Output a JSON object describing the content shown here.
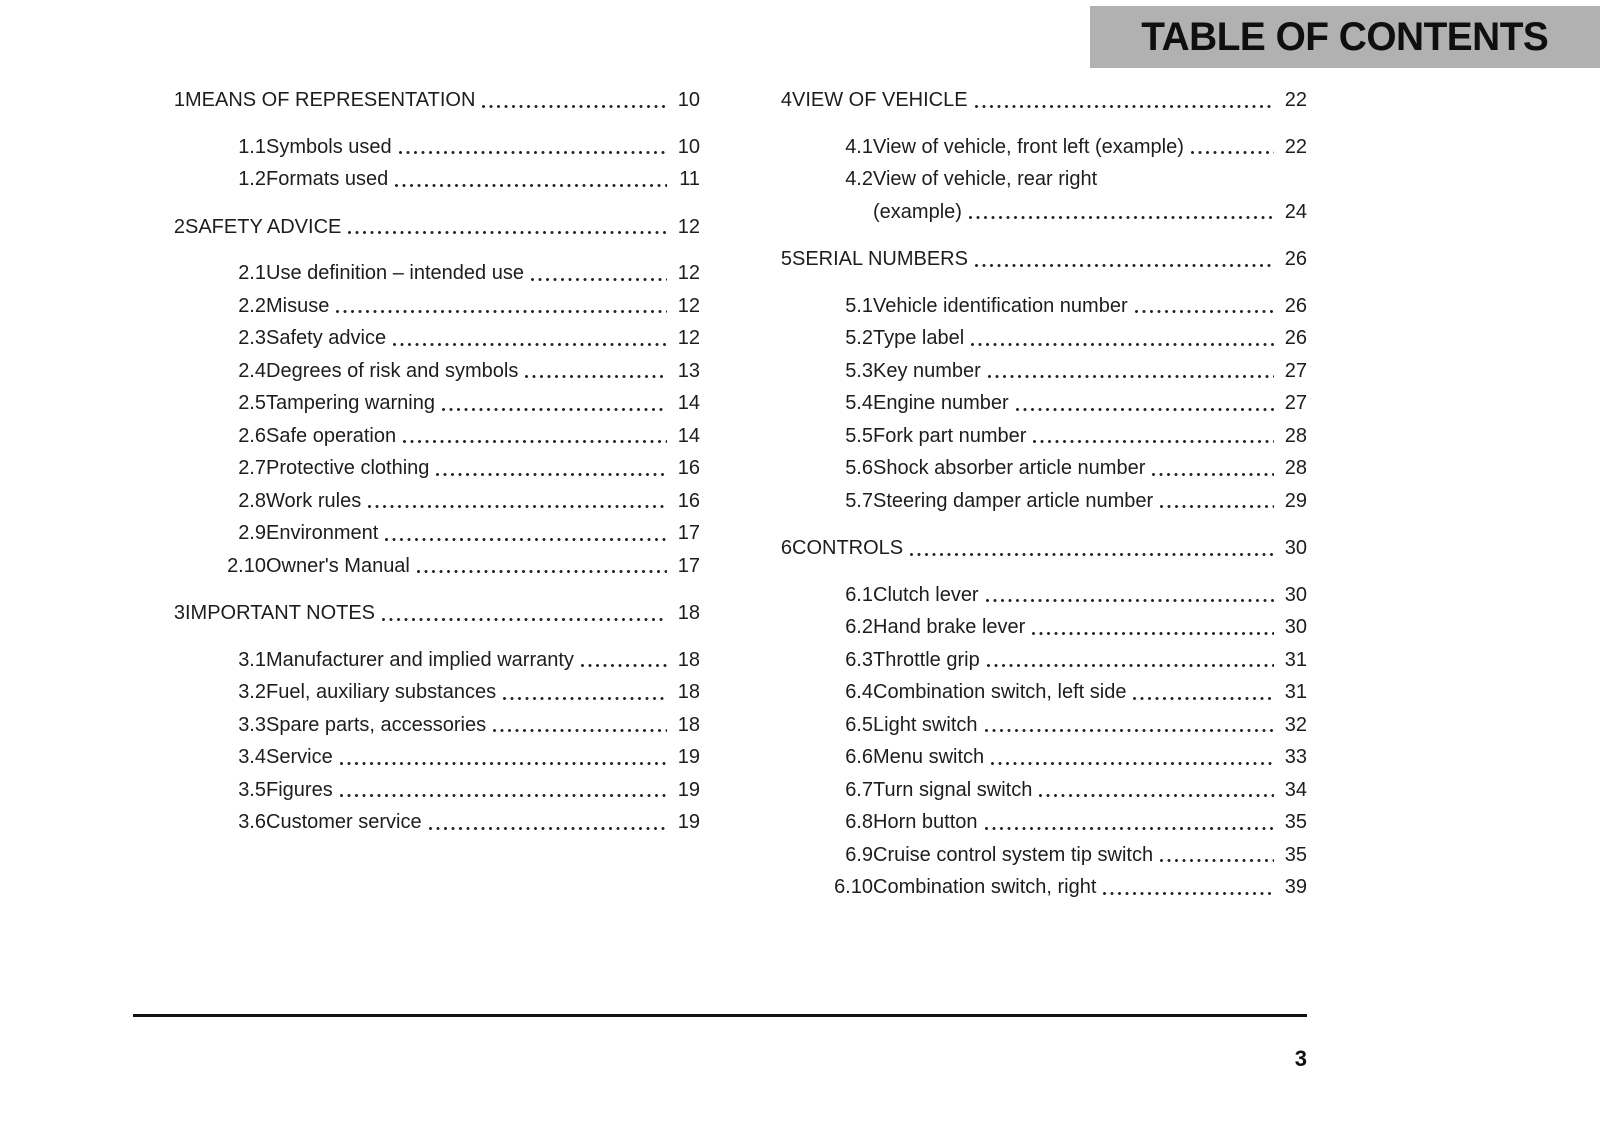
{
  "header": {
    "title": "TABLE OF CONTENTS",
    "banner_background": "#b1b1b1"
  },
  "footer": {
    "page_number": "3"
  },
  "toc": {
    "columns": [
      {
        "sections": [
          {
            "number": "1",
            "title": "MEANS OF REPRESENTATION",
            "page": "10",
            "entries": [
              {
                "number": "1.1",
                "title": "Symbols used",
                "page": "10"
              },
              {
                "number": "1.2",
                "title": "Formats used",
                "page": "11"
              }
            ]
          },
          {
            "number": "2",
            "title": "SAFETY ADVICE",
            "page": "12",
            "entries": [
              {
                "number": "2.1",
                "title": "Use definition – intended use",
                "page": "12"
              },
              {
                "number": "2.2",
                "title": "Misuse",
                "page": "12"
              },
              {
                "number": "2.3",
                "title": "Safety advice",
                "page": "12"
              },
              {
                "number": "2.4",
                "title": "Degrees of risk and symbols",
                "page": "13"
              },
              {
                "number": "2.5",
                "title": "Tampering warning",
                "page": "14"
              },
              {
                "number": "2.6",
                "title": "Safe operation",
                "page": "14"
              },
              {
                "number": "2.7",
                "title": "Protective clothing",
                "page": "16"
              },
              {
                "number": "2.8",
                "title": "Work rules",
                "page": "16"
              },
              {
                "number": "2.9",
                "title": "Environment",
                "page": "17"
              },
              {
                "number": "2.10",
                "title": "Owner's Manual",
                "page": "17"
              }
            ]
          },
          {
            "number": "3",
            "title": "IMPORTANT NOTES",
            "page": "18",
            "entries": [
              {
                "number": "3.1",
                "title": "Manufacturer and implied warranty",
                "page": "18"
              },
              {
                "number": "3.2",
                "title": "Fuel, auxiliary substances",
                "page": "18"
              },
              {
                "number": "3.3",
                "title": "Spare parts, accessories",
                "page": "18"
              },
              {
                "number": "3.4",
                "title": "Service",
                "page": "19"
              },
              {
                "number": "3.5",
                "title": "Figures",
                "page": "19"
              },
              {
                "number": "3.6",
                "title": "Customer service",
                "page": "19"
              }
            ]
          }
        ]
      },
      {
        "sections": [
          {
            "number": "4",
            "title": "VIEW OF VEHICLE",
            "page": "22",
            "entries": [
              {
                "number": "4.1",
                "title": "View of vehicle, front left (example)",
                "page": "22"
              },
              {
                "number": "4.2",
                "title": "View of vehicle, rear right",
                "title_line2": "(example)",
                "page": "24"
              }
            ]
          },
          {
            "number": "5",
            "title": "SERIAL NUMBERS",
            "page": "26",
            "entries": [
              {
                "number": "5.1",
                "title": "Vehicle identification number",
                "page": "26"
              },
              {
                "number": "5.2",
                "title": "Type label",
                "page": "26"
              },
              {
                "number": "5.3",
                "title": "Key number",
                "page": "27"
              },
              {
                "number": "5.4",
                "title": "Engine number",
                "page": "27"
              },
              {
                "number": "5.5",
                "title": "Fork part number",
                "page": "28"
              },
              {
                "number": "5.6",
                "title": "Shock absorber article number",
                "page": "28"
              },
              {
                "number": "5.7",
                "title": "Steering damper article number",
                "page": "29"
              }
            ]
          },
          {
            "number": "6",
            "title": "CONTROLS",
            "page": "30",
            "entries": [
              {
                "number": "6.1",
                "title": "Clutch lever",
                "page": "30"
              },
              {
                "number": "6.2",
                "title": "Hand brake lever",
                "page": "30"
              },
              {
                "number": "6.3",
                "title": "Throttle grip",
                "page": "31"
              },
              {
                "number": "6.4",
                "title": "Combination switch, left side",
                "page": "31"
              },
              {
                "number": "6.5",
                "title": "Light switch",
                "page": "32"
              },
              {
                "number": "6.6",
                "title": "Menu switch",
                "page": "33"
              },
              {
                "number": "6.7",
                "title": "Turn signal switch",
                "page": "34"
              },
              {
                "number": "6.8",
                "title": "Horn button",
                "page": "35"
              },
              {
                "number": "6.9",
                "title": "Cruise control system tip switch",
                "page": "35"
              },
              {
                "number": "6.10",
                "title": "Combination switch, right",
                "page": "39"
              }
            ]
          }
        ]
      }
    ]
  }
}
